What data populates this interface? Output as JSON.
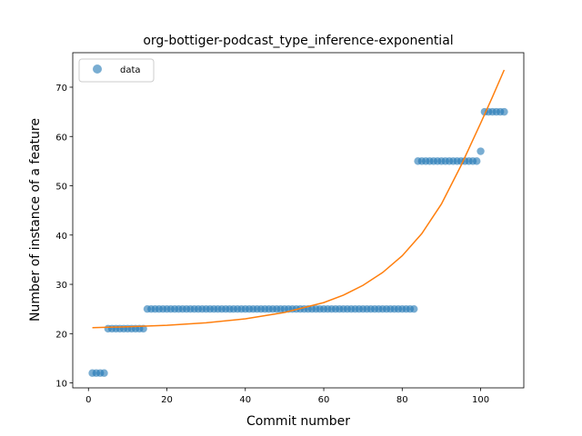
{
  "chart_data": {
    "type": "scatter",
    "title": "org-bottiger-podcast_type_inference-exponential",
    "xlabel": "Commit number",
    "ylabel": "Number of instance of a feature",
    "xlim": [
      -4,
      111
    ],
    "ylim": [
      9,
      77
    ],
    "xticks": [
      0,
      20,
      40,
      60,
      80,
      100
    ],
    "yticks": [
      10,
      20,
      30,
      40,
      50,
      60,
      70
    ],
    "grid": false,
    "legend": {
      "position": "top-left",
      "entries": [
        "data"
      ]
    },
    "colors": {
      "data": "#1f77b4",
      "fit": "#ff7f0e"
    },
    "series": [
      {
        "name": "data",
        "kind": "scatter",
        "points": [
          [
            1,
            12
          ],
          [
            2,
            12
          ],
          [
            3,
            12
          ],
          [
            4,
            12
          ],
          [
            5,
            21
          ],
          [
            6,
            21
          ],
          [
            7,
            21
          ],
          [
            8,
            21
          ],
          [
            9,
            21
          ],
          [
            10,
            21
          ],
          [
            11,
            21
          ],
          [
            12,
            21
          ],
          [
            13,
            21
          ],
          [
            14,
            21
          ],
          [
            15,
            25
          ],
          [
            16,
            25
          ],
          [
            17,
            25
          ],
          [
            18,
            25
          ],
          [
            19,
            25
          ],
          [
            20,
            25
          ],
          [
            21,
            25
          ],
          [
            22,
            25
          ],
          [
            23,
            25
          ],
          [
            24,
            25
          ],
          [
            25,
            25
          ],
          [
            26,
            25
          ],
          [
            27,
            25
          ],
          [
            28,
            25
          ],
          [
            29,
            25
          ],
          [
            30,
            25
          ],
          [
            31,
            25
          ],
          [
            32,
            25
          ],
          [
            33,
            25
          ],
          [
            34,
            25
          ],
          [
            35,
            25
          ],
          [
            36,
            25
          ],
          [
            37,
            25
          ],
          [
            38,
            25
          ],
          [
            39,
            25
          ],
          [
            40,
            25
          ],
          [
            41,
            25
          ],
          [
            42,
            25
          ],
          [
            43,
            25
          ],
          [
            44,
            25
          ],
          [
            45,
            25
          ],
          [
            46,
            25
          ],
          [
            47,
            25
          ],
          [
            48,
            25
          ],
          [
            49,
            25
          ],
          [
            50,
            25
          ],
          [
            51,
            25
          ],
          [
            52,
            25
          ],
          [
            53,
            25
          ],
          [
            54,
            25
          ],
          [
            55,
            25
          ],
          [
            56,
            25
          ],
          [
            57,
            25
          ],
          [
            58,
            25
          ],
          [
            59,
            25
          ],
          [
            60,
            25
          ],
          [
            61,
            25
          ],
          [
            62,
            25
          ],
          [
            63,
            25
          ],
          [
            64,
            25
          ],
          [
            65,
            25
          ],
          [
            66,
            25
          ],
          [
            67,
            25
          ],
          [
            68,
            25
          ],
          [
            69,
            25
          ],
          [
            70,
            25
          ],
          [
            71,
            25
          ],
          [
            72,
            25
          ],
          [
            73,
            25
          ],
          [
            74,
            25
          ],
          [
            75,
            25
          ],
          [
            76,
            25
          ],
          [
            77,
            25
          ],
          [
            78,
            25
          ],
          [
            79,
            25
          ],
          [
            80,
            25
          ],
          [
            81,
            25
          ],
          [
            82,
            25
          ],
          [
            83,
            25
          ],
          [
            84,
            55
          ],
          [
            85,
            55
          ],
          [
            86,
            55
          ],
          [
            87,
            55
          ],
          [
            88,
            55
          ],
          [
            89,
            55
          ],
          [
            90,
            55
          ],
          [
            91,
            55
          ],
          [
            92,
            55
          ],
          [
            93,
            55
          ],
          [
            94,
            55
          ],
          [
            95,
            55
          ],
          [
            96,
            55
          ],
          [
            97,
            55
          ],
          [
            98,
            55
          ],
          [
            99,
            55
          ],
          [
            100,
            57
          ],
          [
            101,
            65
          ],
          [
            102,
            65
          ],
          [
            103,
            65
          ],
          [
            104,
            65
          ],
          [
            105,
            65
          ],
          [
            106,
            65
          ]
        ]
      },
      {
        "kind": "line",
        "points": [
          [
            1,
            21.2
          ],
          [
            10,
            21.4
          ],
          [
            20,
            21.7
          ],
          [
            30,
            22.2
          ],
          [
            40,
            23.0
          ],
          [
            50,
            24.3
          ],
          [
            60,
            26.3
          ],
          [
            65,
            27.8
          ],
          [
            70,
            29.8
          ],
          [
            75,
            32.4
          ],
          [
            80,
            35.8
          ],
          [
            85,
            40.3
          ],
          [
            90,
            46.3
          ],
          [
            95,
            54.1
          ],
          [
            100,
            62.7
          ],
          [
            103,
            68.0
          ],
          [
            106,
            73.5
          ]
        ]
      }
    ]
  }
}
